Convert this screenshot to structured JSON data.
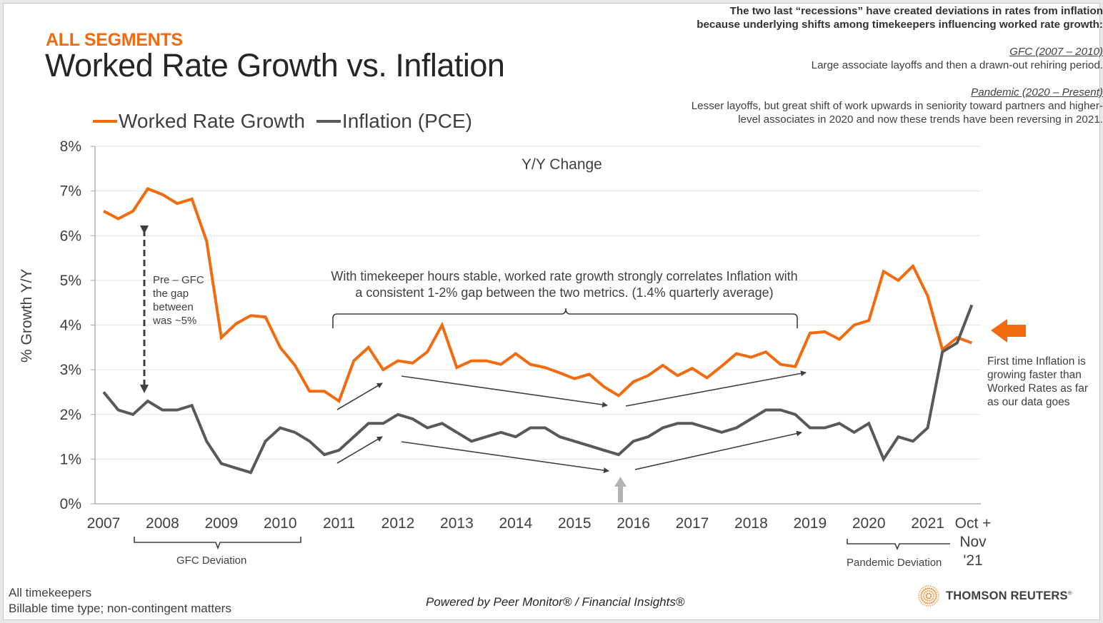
{
  "header": {
    "segment": "ALL SEGMENTS",
    "title": "Worked Rate Growth vs. Inflation"
  },
  "notes": {
    "intro_line1": "The  two last “recessions” have created deviations in rates from inflation",
    "intro_line2": "because underlying shifts among timekeepers influencing worked rate growth:",
    "gfc_heading": "GFC (2007 – 2010)",
    "gfc_text": "Large associate layoffs and then a drawn-out rehiring period.",
    "pandemic_heading": "Pandemic (2020 – Present)",
    "pandemic_line1": "Lesser layoffs, but great shift of work upwards in seniority toward partners and higher-",
    "pandemic_line2": "level associates in 2020 and now these trends have been reversing in 2021."
  },
  "annotations": {
    "pre_gfc": [
      "Pre – GFC",
      "the gap",
      "between",
      "was ~5%"
    ],
    "stable_line1": "With timekeeper hours stable, worked rate growth strongly correlates Inflation with",
    "stable_line2": "a consistent 1-2% gap between the two metrics. (1.4% quarterly average)",
    "gfc_deviation": "GFC Deviation",
    "pandemic_deviation": "Pandemic Deviation",
    "first_time": [
      "First time Inflation is",
      "growing faster than",
      "Worked Rates as far",
      "as our data goes"
    ]
  },
  "footer": {
    "line1": "All timekeepers",
    "line2": "Billable time type; non-contingent matters",
    "powered_by": "Powered by Peer Monitor® / Financial Insights®",
    "logo_text": "THOMSON REUTERS",
    "logo_mark": "®"
  },
  "colors": {
    "worked_rate": "#f26b0f",
    "inflation": "#595959",
    "highlight_arrow_gray": "#b3b3b3",
    "title_text": "#262626"
  },
  "chart_data": {
    "type": "line",
    "title": "Y/Y Change",
    "xlabel": "",
    "ylabel": "% Growth Y/Y",
    "ylim": [
      0,
      8
    ],
    "yticks": [
      "0%",
      "1%",
      "2%",
      "3%",
      "4%",
      "5%",
      "6%",
      "7%",
      "8%"
    ],
    "xtick_labels": [
      "2007",
      "2008",
      "2009",
      "2010",
      "2011",
      "2012",
      "2013",
      "2014",
      "2015",
      "2016",
      "2017",
      "2018",
      "2019",
      "2020",
      "2021",
      "Oct +",
      "Nov",
      "'21"
    ],
    "x_frequency": "quarterly, 2007 Q1 through 2021 Q4, final point Oct + Nov '21",
    "grid": true,
    "legend_position": "top-left",
    "series": [
      {
        "name": "Worked Rate Growth",
        "color": "#f26b0f",
        "values": [
          6.55,
          6.38,
          6.55,
          7.05,
          6.92,
          6.72,
          6.82,
          5.88,
          3.72,
          4.03,
          4.21,
          4.18,
          3.5,
          3.1,
          2.52,
          2.52,
          2.3,
          3.2,
          3.5,
          3.0,
          3.2,
          3.15,
          3.4,
          4.0,
          3.05,
          3.2,
          3.2,
          3.12,
          3.36,
          3.12,
          3.05,
          2.93,
          2.8,
          2.9,
          2.62,
          2.42,
          2.73,
          2.87,
          3.1,
          2.87,
          3.03,
          2.82,
          3.08,
          3.36,
          3.28,
          3.4,
          3.12,
          3.07,
          3.82,
          3.85,
          3.68,
          4.0,
          4.1,
          5.2,
          5.0,
          5.32,
          4.65,
          3.45,
          3.72,
          3.6
        ]
      },
      {
        "name": "Inflation (PCE)",
        "color": "#595959",
        "values": [
          2.5,
          2.1,
          2.0,
          2.3,
          2.1,
          2.1,
          2.2,
          1.4,
          0.9,
          0.8,
          0.7,
          1.4,
          1.7,
          1.6,
          1.4,
          1.1,
          1.2,
          1.5,
          1.8,
          1.8,
          2.0,
          1.9,
          1.7,
          1.8,
          1.6,
          1.4,
          1.5,
          1.6,
          1.5,
          1.7,
          1.7,
          1.5,
          1.4,
          1.3,
          1.2,
          1.1,
          1.4,
          1.5,
          1.7,
          1.8,
          1.8,
          1.7,
          1.6,
          1.7,
          1.9,
          2.1,
          2.1,
          2.0,
          1.7,
          1.7,
          1.8,
          1.6,
          1.8,
          1.0,
          1.5,
          1.4,
          1.7,
          3.4,
          3.6,
          4.45
        ]
      }
    ]
  }
}
